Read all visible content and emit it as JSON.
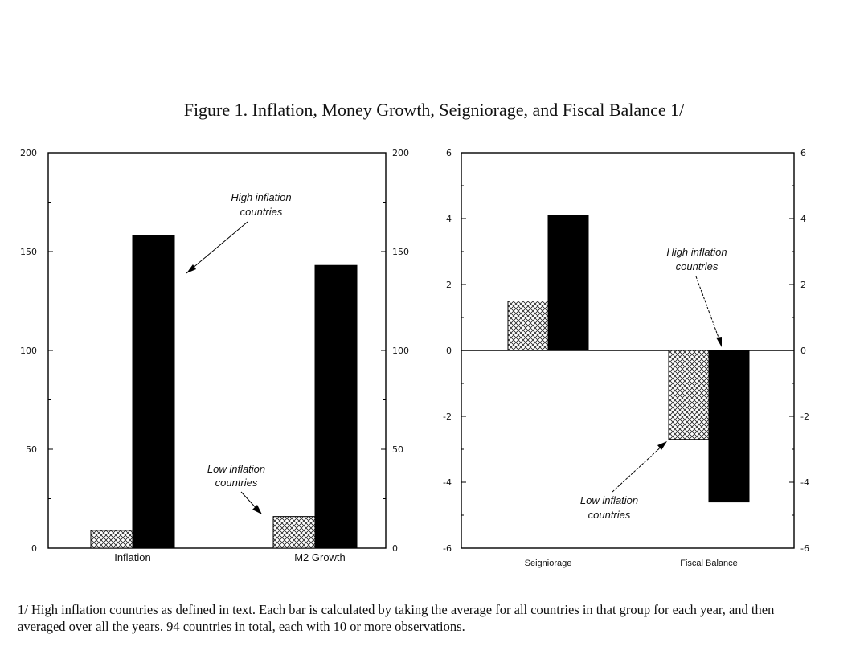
{
  "title": "Figure 1. Inflation, Money Growth, Seigniorage, and Fiscal Balance 1/",
  "footnote": "1/ High inflation countries as defined in text. Each bar is calculated by taking the average for all countries in that group for each year, and then averaged over all the years. 94 countries in total, each with 10 or more observations.",
  "colors": {
    "high": "#000000",
    "low_pattern": "crosshatch"
  },
  "chart_data": [
    {
      "type": "bar",
      "categories": [
        "Inflation",
        "M2 Growth"
      ],
      "series": [
        {
          "name": "Low inflation countries",
          "values": [
            9,
            16
          ]
        },
        {
          "name": "High inflation countries",
          "values": [
            158,
            143
          ]
        }
      ],
      "ylim": [
        0,
        200
      ],
      "yticks": [
        "0",
        "50",
        "100",
        "150",
        "200"
      ],
      "annotations": {
        "high": "High inflation countries",
        "low": "Low inflation countries"
      }
    },
    {
      "type": "bar",
      "categories": [
        "Seigniorage",
        "Fiscal Balance"
      ],
      "series": [
        {
          "name": "Low inflation countries",
          "values": [
            1.5,
            -2.7
          ]
        },
        {
          "name": "High inflation countries",
          "values": [
            4.1,
            -4.6
          ]
        }
      ],
      "ylim": [
        -6,
        6
      ],
      "yticks": [
        "-6",
        "-4",
        "-2",
        "0",
        "2",
        "4",
        "6"
      ],
      "annotations": {
        "high": "High inflation countries",
        "low": "Low inflation countries"
      }
    }
  ]
}
